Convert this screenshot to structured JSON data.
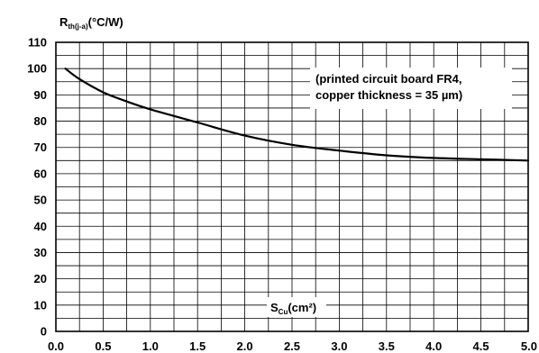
{
  "chart_data": {
    "type": "line",
    "title": "",
    "ylabel": {
      "main": "R",
      "sub": "th(j-a)",
      "unit": "(°C/W)"
    },
    "xlabel": {
      "main": "S",
      "sub": "Cu",
      "unit": "(cm²)"
    },
    "annotation": {
      "line1": "(printed circuit board FR4,",
      "line2": "copper thickness = 35 µm)"
    },
    "xlim": [
      0,
      5
    ],
    "ylim": [
      0,
      110
    ],
    "x_ticks": [
      "0.0",
      "0.5",
      "1.0",
      "1.5",
      "2.0",
      "2.5",
      "3.0",
      "3.5",
      "4.0",
      "4.5",
      "5.0"
    ],
    "y_ticks": [
      "0",
      "10",
      "20",
      "30",
      "40",
      "50",
      "60",
      "70",
      "80",
      "90",
      "100",
      "110"
    ],
    "grid": true,
    "series": [
      {
        "x": [
          0.1,
          0.25,
          0.5,
          0.75,
          1.0,
          1.5,
          2.0,
          2.5,
          3.0,
          3.5,
          4.0,
          4.5,
          5.0
        ],
        "y": [
          100,
          96,
          91,
          87.5,
          84.5,
          79.5,
          74.5,
          71,
          68.8,
          67,
          66,
          65.5,
          65
        ]
      }
    ],
    "line_color": "#000000"
  }
}
